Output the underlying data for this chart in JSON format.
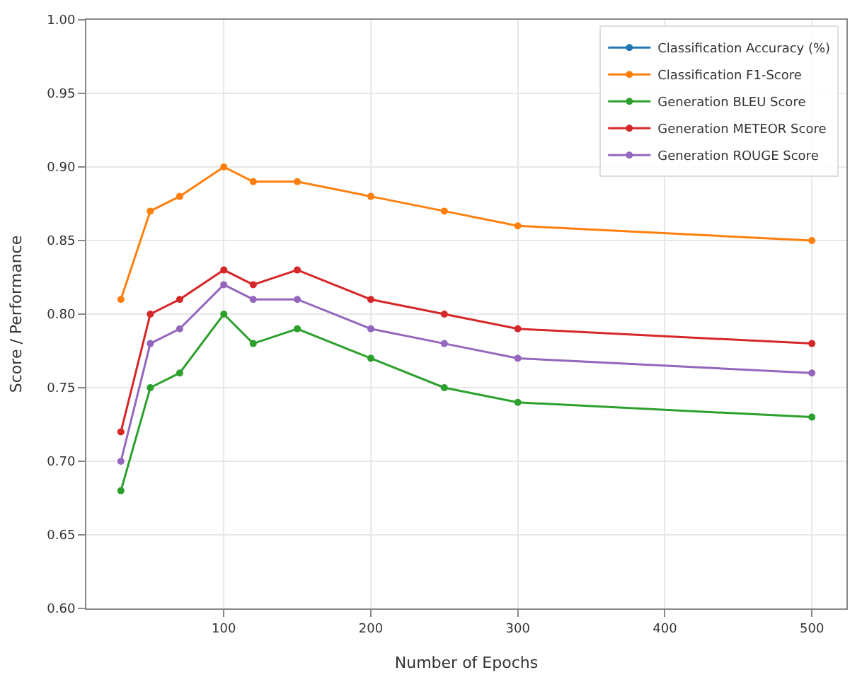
{
  "chart_data": {
    "type": "line",
    "xlabel": "Number of Epochs",
    "ylabel": "Score / Performance",
    "x": [
      30,
      50,
      70,
      100,
      120,
      150,
      200,
      250,
      300,
      500
    ],
    "series": [
      {
        "name": "Classification Accuracy (%)",
        "color": "#1f77b4",
        "values": [
          null,
          null,
          null,
          null,
          null,
          null,
          null,
          null,
          null,
          null
        ]
      },
      {
        "name": "Classification F1-Score",
        "color": "#ff7f0e",
        "values": [
          0.81,
          0.87,
          0.88,
          0.9,
          0.89,
          0.89,
          0.88,
          0.87,
          0.86,
          0.85
        ]
      },
      {
        "name": "Generation BLEU Score",
        "color": "#2ca02c",
        "values": [
          0.68,
          0.75,
          0.76,
          0.8,
          0.78,
          0.79,
          0.77,
          0.75,
          0.74,
          0.73
        ]
      },
      {
        "name": "Generation METEOR Score",
        "color": "#d62728",
        "values": [
          0.72,
          0.8,
          0.81,
          0.83,
          0.82,
          0.83,
          0.81,
          0.8,
          0.79,
          0.78
        ]
      },
      {
        "name": "Generation ROUGE Score",
        "color": "#9467bd",
        "values": [
          0.7,
          0.78,
          0.79,
          0.82,
          0.81,
          0.81,
          0.79,
          0.78,
          0.77,
          0.76
        ]
      }
    ],
    "xlim": [
      6.5,
      523.5
    ],
    "xticks": [
      100,
      200,
      300,
      400,
      500
    ],
    "ylim": [
      0.6,
      1.0
    ],
    "yticks": [
      {
        "value": 0.6,
        "label": "0.60"
      },
      {
        "value": 0.65,
        "label": "0.65"
      },
      {
        "value": 0.7,
        "label": "0.70"
      },
      {
        "value": 0.75,
        "label": "0.75"
      },
      {
        "value": 0.8,
        "label": "0.80"
      },
      {
        "value": 0.85,
        "label": "0.85"
      },
      {
        "value": 0.9,
        "label": "0.90"
      },
      {
        "value": 0.95,
        "label": "0.95"
      },
      {
        "value": 1.0,
        "label": "1.00"
      }
    ],
    "grid": true,
    "legend": "top right",
    "marker": "circle",
    "line_style": "solid"
  }
}
